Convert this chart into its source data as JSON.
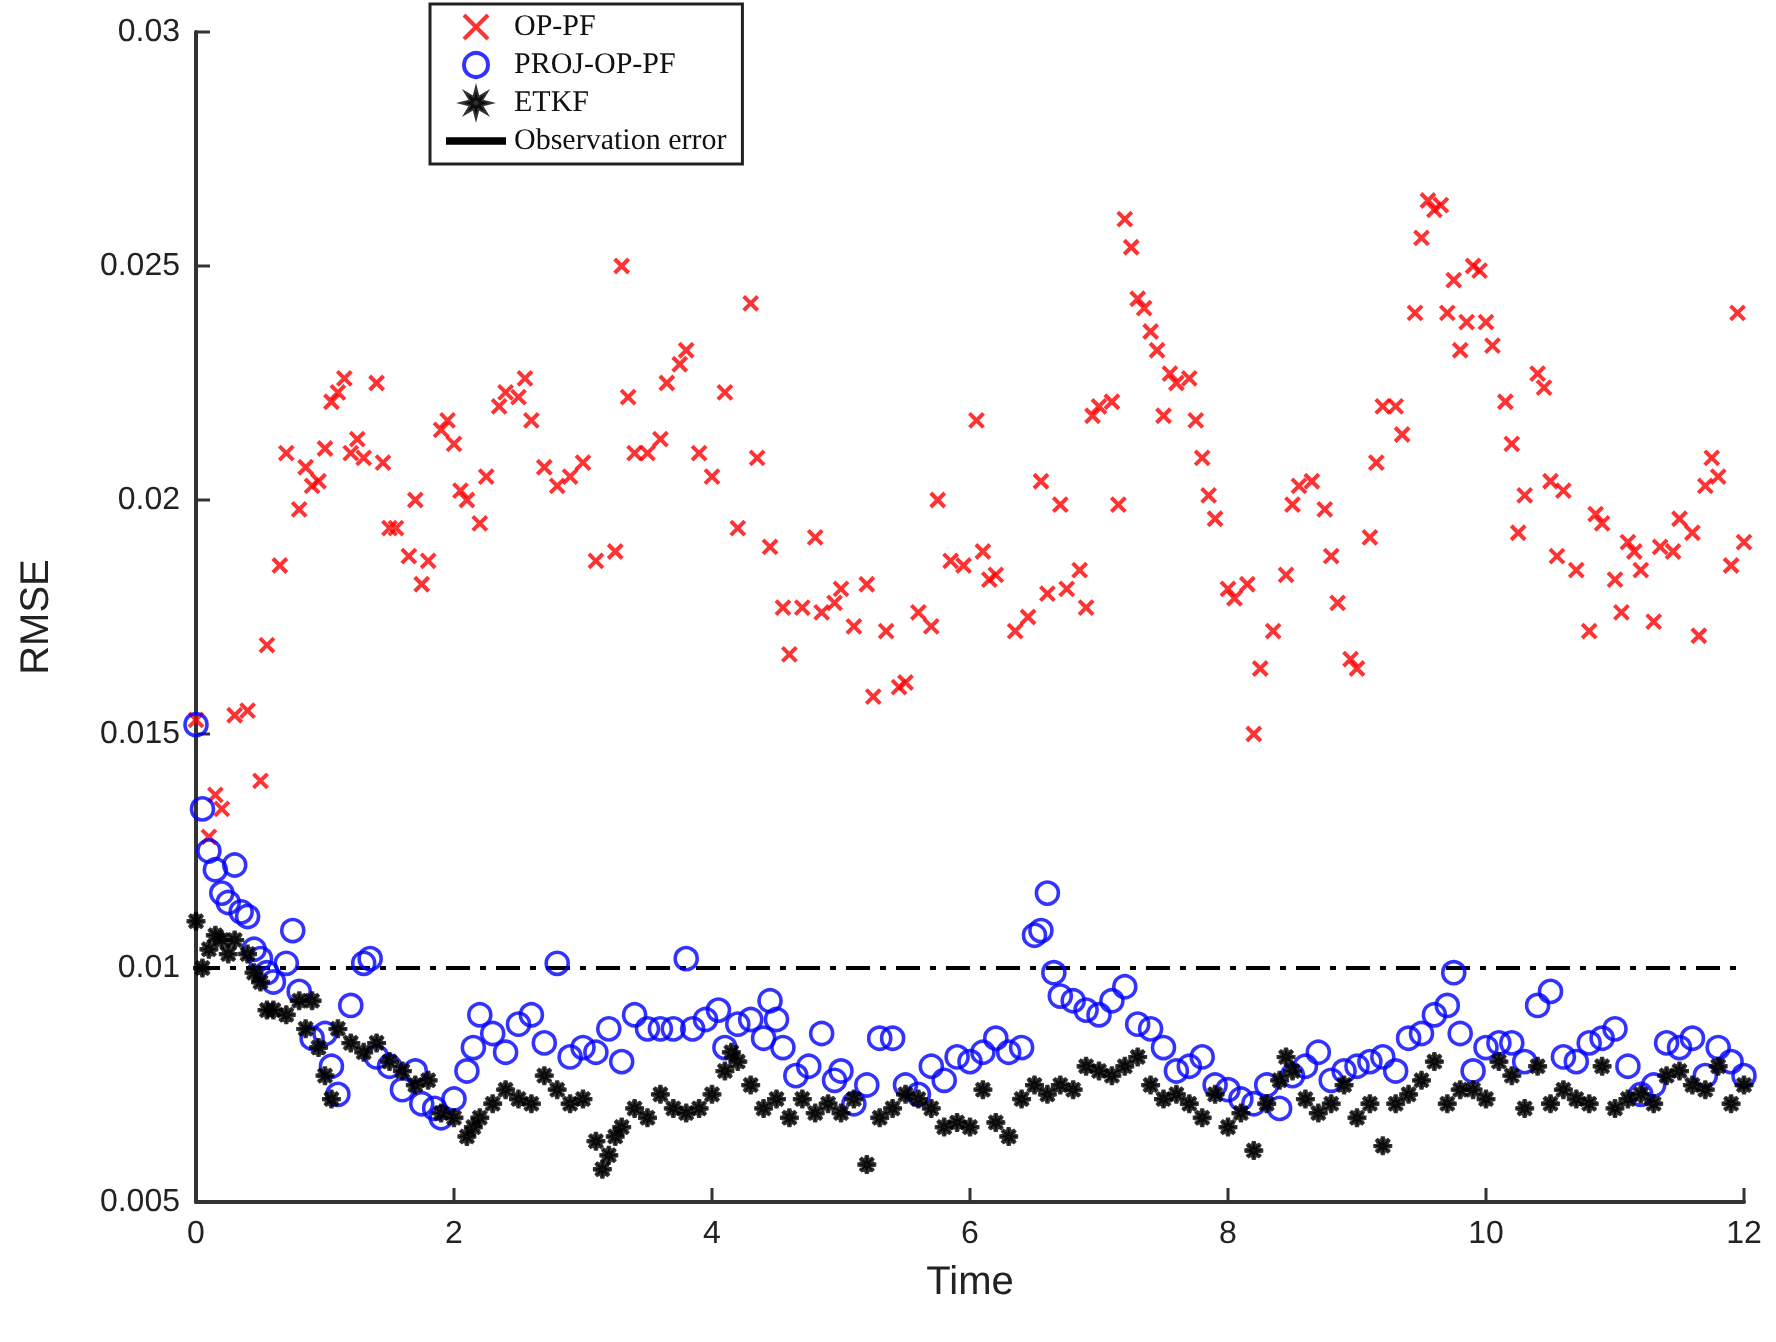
{
  "chart_data": {
    "type": "scatter",
    "xlabel": "Time",
    "ylabel": "RMSE",
    "xlim": [
      0,
      12
    ],
    "xticks": [
      0,
      2,
      4,
      6,
      8,
      10,
      12
    ],
    "ylim": [
      0.005,
      0.03
    ],
    "yticks": [
      0.005,
      0.01,
      0.015,
      0.02,
      0.025,
      0.03
    ],
    "grid": false,
    "legend": "top left",
    "series": [
      {
        "name": "OP-PF",
        "color": "#ff0000",
        "marker": "cross",
        "x": [
          0,
          0.1,
          0.15,
          0.2,
          0.3,
          0.4,
          0.5,
          0.55,
          0.65,
          0.7,
          0.8,
          0.85,
          0.9,
          0.95,
          1.0,
          1.05,
          1.1,
          1.15,
          1.2,
          1.25,
          1.3,
          1.4,
          1.45,
          1.5,
          1.55,
          1.65,
          1.7,
          1.75,
          1.8,
          1.9,
          1.95,
          2.0,
          2.05,
          2.1,
          2.2,
          2.25,
          2.35,
          2.4,
          2.5,
          2.55,
          2.6,
          2.7,
          2.8,
          2.9,
          3.0,
          3.1,
          3.25,
          3.3,
          3.35,
          3.4,
          3.5,
          3.6,
          3.65,
          3.75,
          3.8,
          3.9,
          4.0,
          4.1,
          4.2,
          4.3,
          4.35,
          4.45,
          4.55,
          4.6,
          4.7,
          4.8,
          4.85,
          4.95,
          5.0,
          5.1,
          5.2,
          5.25,
          5.35,
          5.45,
          5.5,
          5.6,
          5.7,
          5.75,
          5.85,
          5.95,
          6.05,
          6.1,
          6.15,
          6.2,
          6.35,
          6.45,
          6.55,
          6.6,
          6.7,
          6.75,
          6.85,
          6.9,
          6.95,
          7.0,
          7.1,
          7.15,
          7.2,
          7.25,
          7.3,
          7.35,
          7.4,
          7.45,
          7.5,
          7.55,
          7.6,
          7.7,
          7.75,
          7.8,
          7.85,
          7.9,
          8.0,
          8.05,
          8.15,
          8.2,
          8.25,
          8.35,
          8.45,
          8.5,
          8.55,
          8.65,
          8.75,
          8.8,
          8.85,
          8.95,
          9.0,
          9.1,
          9.15,
          9.2,
          9.3,
          9.35,
          9.45,
          9.5,
          9.55,
          9.6,
          9.65,
          9.7,
          9.75,
          9.8,
          9.85,
          9.9,
          9.95,
          10.0,
          10.05,
          10.15,
          10.2,
          10.25,
          10.3,
          10.4,
          10.45,
          10.5,
          10.55,
          10.6,
          10.7,
          10.8,
          10.85,
          10.9,
          11.0,
          11.05,
          11.1,
          11.15,
          11.2,
          11.3,
          11.35,
          11.45,
          11.5,
          11.6,
          11.65,
          11.7,
          11.75,
          11.8,
          11.9,
          11.95,
          12.0
        ],
        "values": [
          0.0153,
          0.0128,
          0.0137,
          0.0134,
          0.0154,
          0.0155,
          0.014,
          0.0169,
          0.0186,
          0.021,
          0.0198,
          0.0207,
          0.0203,
          0.0204,
          0.0211,
          0.0221,
          0.0223,
          0.0226,
          0.021,
          0.0213,
          0.0209,
          0.0225,
          0.0208,
          0.0194,
          0.0194,
          0.0188,
          0.02,
          0.0182,
          0.0187,
          0.0215,
          0.0217,
          0.0212,
          0.0202,
          0.02,
          0.0195,
          0.0205,
          0.022,
          0.0223,
          0.0222,
          0.0226,
          0.0217,
          0.0207,
          0.0203,
          0.0205,
          0.0208,
          0.0187,
          0.0189,
          0.025,
          0.0222,
          0.021,
          0.021,
          0.0213,
          0.0225,
          0.0229,
          0.0232,
          0.021,
          0.0205,
          0.0223,
          0.0194,
          0.0242,
          0.0209,
          0.019,
          0.0177,
          0.0167,
          0.0177,
          0.0192,
          0.0176,
          0.0178,
          0.0181,
          0.0173,
          0.0182,
          0.0158,
          0.0172,
          0.016,
          0.0161,
          0.0176,
          0.0173,
          0.02,
          0.0187,
          0.0186,
          0.0217,
          0.0189,
          0.0183,
          0.0184,
          0.0172,
          0.0175,
          0.0204,
          0.018,
          0.0199,
          0.0181,
          0.0185,
          0.0177,
          0.0218,
          0.022,
          0.0221,
          0.0199,
          0.026,
          0.0254,
          0.0243,
          0.0241,
          0.0236,
          0.0232,
          0.0218,
          0.0227,
          0.0225,
          0.0226,
          0.0217,
          0.0209,
          0.0201,
          0.0196,
          0.0181,
          0.0179,
          0.0182,
          0.015,
          0.0164,
          0.0172,
          0.0184,
          0.0199,
          0.0203,
          0.0204,
          0.0198,
          0.0188,
          0.0178,
          0.0166,
          0.0164,
          0.0192,
          0.0208,
          0.022,
          0.022,
          0.0214,
          0.024,
          0.0256,
          0.0264,
          0.0262,
          0.0263,
          0.024,
          0.0247,
          0.0232,
          0.0238,
          0.025,
          0.0249,
          0.0238,
          0.0233,
          0.0221,
          0.0212,
          0.0193,
          0.0201,
          0.0227,
          0.0224,
          0.0204,
          0.0188,
          0.0202,
          0.0185,
          0.0172,
          0.0197,
          0.0195,
          0.0183,
          0.0176,
          0.0191,
          0.0189,
          0.0185,
          0.0174,
          0.019,
          0.0189,
          0.0196,
          0.0193,
          0.0171,
          0.0203,
          0.0209,
          0.0205,
          0.0186,
          0.024,
          0.0191
        ]
      },
      {
        "name": "PROJ-OP-PF",
        "color": "#0000ff",
        "marker": "circle",
        "x": [
          0,
          0.05,
          0.1,
          0.15,
          0.2,
          0.25,
          0.3,
          0.35,
          0.4,
          0.45,
          0.5,
          0.55,
          0.6,
          0.7,
          0.75,
          0.8,
          0.9,
          1.0,
          1.05,
          1.1,
          1.2,
          1.3,
          1.35,
          1.4,
          1.5,
          1.6,
          1.7,
          1.75,
          1.85,
          1.9,
          2.0,
          2.1,
          2.15,
          2.2,
          2.3,
          2.4,
          2.5,
          2.6,
          2.7,
          2.8,
          2.9,
          3.0,
          3.1,
          3.2,
          3.3,
          3.4,
          3.5,
          3.6,
          3.7,
          3.8,
          3.85,
          3.95,
          4.05,
          4.1,
          4.2,
          4.3,
          4.4,
          4.45,
          4.5,
          4.55,
          4.65,
          4.75,
          4.85,
          4.95,
          5.0,
          5.1,
          5.2,
          5.3,
          5.4,
          5.5,
          5.6,
          5.7,
          5.8,
          5.9,
          6.0,
          6.1,
          6.2,
          6.3,
          6.4,
          6.5,
          6.55,
          6.6,
          6.65,
          6.7,
          6.8,
          6.9,
          7.0,
          7.1,
          7.2,
          7.3,
          7.4,
          7.5,
          7.6,
          7.7,
          7.8,
          7.9,
          8.0,
          8.1,
          8.2,
          8.3,
          8.4,
          8.5,
          8.6,
          8.7,
          8.8,
          8.9,
          9.0,
          9.1,
          9.2,
          9.3,
          9.4,
          9.5,
          9.6,
          9.7,
          9.75,
          9.8,
          9.9,
          10.0,
          10.1,
          10.2,
          10.3,
          10.4,
          10.5,
          10.6,
          10.7,
          10.8,
          10.9,
          11.0,
          11.1,
          11.2,
          11.3,
          11.4,
          11.5,
          11.6,
          11.7,
          11.8,
          11.9,
          12.0
        ],
        "values": [
          0.0152,
          0.0134,
          0.0125,
          0.0121,
          0.0116,
          0.0114,
          0.0122,
          0.0112,
          0.0111,
          0.0104,
          0.0102,
          0.0099,
          0.0097,
          0.0101,
          0.0108,
          0.0095,
          0.0085,
          0.0086,
          0.0079,
          0.0073,
          0.0092,
          0.0101,
          0.0102,
          0.0081,
          0.0079,
          0.0074,
          0.0078,
          0.0071,
          0.007,
          0.0068,
          0.0072,
          0.0078,
          0.0083,
          0.009,
          0.0086,
          0.0082,
          0.0088,
          0.009,
          0.0084,
          0.0101,
          0.0081,
          0.0083,
          0.0082,
          0.0087,
          0.008,
          0.009,
          0.0087,
          0.0087,
          0.0087,
          0.0102,
          0.0087,
          0.0089,
          0.0091,
          0.0083,
          0.0088,
          0.0089,
          0.0085,
          0.0093,
          0.0089,
          0.0083,
          0.0077,
          0.0079,
          0.0086,
          0.0076,
          0.0078,
          0.0071,
          0.0075,
          0.0085,
          0.0085,
          0.0075,
          0.0073,
          0.0079,
          0.0076,
          0.0081,
          0.008,
          0.0082,
          0.0085,
          0.0082,
          0.0083,
          0.0107,
          0.0108,
          0.0116,
          0.0099,
          0.0094,
          0.0093,
          0.0091,
          0.009,
          0.0093,
          0.0096,
          0.0088,
          0.0087,
          0.0083,
          0.0078,
          0.0079,
          0.0081,
          0.0075,
          0.0074,
          0.0072,
          0.0071,
          0.0075,
          0.007,
          0.0077,
          0.0079,
          0.0082,
          0.0076,
          0.0078,
          0.0079,
          0.008,
          0.0081,
          0.0078,
          0.0085,
          0.0086,
          0.009,
          0.0092,
          0.0099,
          0.0086,
          0.0078,
          0.0083,
          0.0084,
          0.0084,
          0.008,
          0.0092,
          0.0095,
          0.0081,
          0.008,
          0.0084,
          0.0085,
          0.0087,
          0.0079,
          0.0073,
          0.0075,
          0.0084,
          0.0083,
          0.0085,
          0.0077,
          0.0083,
          0.008,
          0.0077
        ]
      },
      {
        "name": "ETKF",
        "color": "#000000",
        "marker": "star",
        "x": [
          0,
          0.05,
          0.1,
          0.15,
          0.2,
          0.25,
          0.3,
          0.4,
          0.45,
          0.5,
          0.55,
          0.6,
          0.7,
          0.8,
          0.85,
          0.9,
          0.95,
          1.0,
          1.05,
          1.1,
          1.2,
          1.3,
          1.4,
          1.5,
          1.6,
          1.7,
          1.8,
          1.9,
          2.0,
          2.1,
          2.15,
          2.2,
          2.3,
          2.4,
          2.5,
          2.6,
          2.7,
          2.8,
          2.9,
          3.0,
          3.1,
          3.15,
          3.2,
          3.25,
          3.3,
          3.4,
          3.5,
          3.6,
          3.7,
          3.8,
          3.9,
          4.0,
          4.1,
          4.15,
          4.2,
          4.3,
          4.4,
          4.5,
          4.6,
          4.7,
          4.8,
          4.9,
          5.0,
          5.1,
          5.2,
          5.3,
          5.4,
          5.5,
          5.6,
          5.7,
          5.8,
          5.9,
          6.0,
          6.1,
          6.2,
          6.3,
          6.4,
          6.5,
          6.6,
          6.7,
          6.8,
          6.9,
          7.0,
          7.1,
          7.2,
          7.3,
          7.4,
          7.5,
          7.6,
          7.7,
          7.8,
          7.9,
          8.0,
          8.1,
          8.2,
          8.3,
          8.4,
          8.45,
          8.5,
          8.6,
          8.7,
          8.8,
          8.9,
          9.0,
          9.1,
          9.2,
          9.3,
          9.4,
          9.5,
          9.6,
          9.7,
          9.8,
          9.9,
          10.0,
          10.1,
          10.2,
          10.3,
          10.4,
          10.5,
          10.6,
          10.7,
          10.8,
          10.9,
          11.0,
          11.1,
          11.2,
          11.3,
          11.4,
          11.5,
          11.6,
          11.7,
          11.8,
          11.9,
          12.0
        ],
        "values": [
          0.011,
          0.01,
          0.0104,
          0.0107,
          0.0106,
          0.0103,
          0.0106,
          0.0103,
          0.0099,
          0.0097,
          0.0091,
          0.0091,
          0.009,
          0.0093,
          0.0087,
          0.0093,
          0.0083,
          0.0077,
          0.0072,
          0.0087,
          0.0084,
          0.0082,
          0.0084,
          0.008,
          0.0078,
          0.0075,
          0.0076,
          0.0069,
          0.0068,
          0.0064,
          0.0066,
          0.0068,
          0.0071,
          0.0074,
          0.0072,
          0.0071,
          0.0077,
          0.0074,
          0.0071,
          0.0072,
          0.0063,
          0.0057,
          0.006,
          0.0064,
          0.0066,
          0.007,
          0.0068,
          0.0073,
          0.007,
          0.0069,
          0.007,
          0.0073,
          0.0078,
          0.0082,
          0.008,
          0.0075,
          0.007,
          0.0072,
          0.0068,
          0.0072,
          0.0069,
          0.0071,
          0.0069,
          0.0072,
          0.0058,
          0.0068,
          0.007,
          0.0073,
          0.0072,
          0.007,
          0.0066,
          0.0067,
          0.0066,
          0.0074,
          0.0067,
          0.0064,
          0.0072,
          0.0075,
          0.0073,
          0.0075,
          0.0074,
          0.0079,
          0.0078,
          0.0077,
          0.0079,
          0.0081,
          0.0075,
          0.0072,
          0.0073,
          0.0071,
          0.0068,
          0.0073,
          0.0066,
          0.0069,
          0.0061,
          0.0071,
          0.0076,
          0.0081,
          0.0078,
          0.0072,
          0.0069,
          0.0071,
          0.0075,
          0.0068,
          0.0071,
          0.0062,
          0.0071,
          0.0073,
          0.0076,
          0.008,
          0.0071,
          0.0074,
          0.0074,
          0.0072,
          0.008,
          0.0077,
          0.007,
          0.0079,
          0.0071,
          0.0074,
          0.0072,
          0.0071,
          0.0079,
          0.007,
          0.0072,
          0.0073,
          0.0071,
          0.0077,
          0.0078,
          0.0075,
          0.0074,
          0.0079,
          0.0071,
          0.0075
        ]
      },
      {
        "name": "Observation error",
        "type": "line",
        "color": "#000000",
        "marker": "none",
        "line_style": "dashed",
        "x": [
          0,
          12
        ],
        "values": [
          0.01,
          0.01
        ]
      }
    ]
  }
}
